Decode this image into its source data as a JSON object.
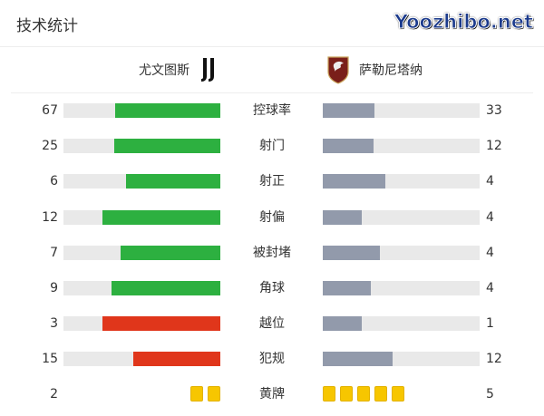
{
  "title": "技术统计",
  "home": {
    "name": "尤文图斯",
    "logo": "juventus-logo"
  },
  "away": {
    "name": "萨勒尼塔纳",
    "logo": "salernitana-logo"
  },
  "colors": {
    "home_bar": "#2db040",
    "home_bar_alt": "#e0361b",
    "away_bar": "#929aab",
    "track": "#e9e9e9",
    "card": "#f7c600"
  },
  "stats": [
    {
      "label": "控球率",
      "home": "67",
      "away": "33",
      "color": "#2db040"
    },
    {
      "label": "射门",
      "home": "25",
      "away": "12",
      "color": "#2db040"
    },
    {
      "label": "射正",
      "home": "6",
      "away": "4",
      "color": "#2db040"
    },
    {
      "label": "射偏",
      "home": "12",
      "away": "4",
      "color": "#2db040"
    },
    {
      "label": "被封堵",
      "home": "7",
      "away": "4",
      "color": "#2db040"
    },
    {
      "label": "角球",
      "home": "9",
      "away": "4",
      "color": "#2db040"
    },
    {
      "label": "越位",
      "home": "3",
      "away": "1",
      "color": "#e0361b"
    },
    {
      "label": "犯规",
      "home": "15",
      "away": "12",
      "color": "#e0361b"
    }
  ],
  "yellow_cards": {
    "label": "黄牌",
    "home": "2",
    "away": "5"
  },
  "watermark": "Yoozhibo.net"
}
